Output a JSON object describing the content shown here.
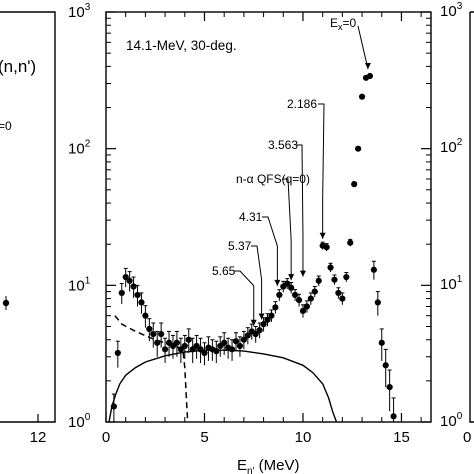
{
  "chart_data": {
    "type": "scatter",
    "title": "14.1-MeV, 30-deg.",
    "xlabel": "E",
    "xlabel_sub": "n'",
    "xlabel_unit": " (MeV)",
    "ylabel": "",
    "xlim": [
      0,
      16.5
    ],
    "ylim": [
      1,
      1000
    ],
    "yscale": "log",
    "x_ticks": [
      "0",
      "5",
      "10",
      "15"
    ],
    "y_ticks": [
      "10",
      "10",
      "10",
      "10"
    ],
    "y_tick_exps": [
      "0",
      "1",
      "2",
      "3"
    ],
    "series": [
      {
        "marker": "filled-circle",
        "x": [
          0.4,
          0.6,
          0.8,
          1.0,
          1.2,
          1.4,
          1.6,
          1.8,
          2.0,
          2.2,
          2.4,
          2.6,
          2.8,
          3.0,
          3.2,
          3.4,
          3.6,
          3.8,
          4.0,
          4.2,
          4.4,
          4.6,
          4.8,
          5.0,
          5.2,
          5.4,
          5.6,
          5.8,
          6.0,
          6.2,
          6.4,
          6.6,
          6.8,
          7.0,
          7.2,
          7.4,
          7.6,
          7.8,
          8.0,
          8.2,
          8.4,
          8.6,
          8.8,
          9.0,
          9.2,
          9.4,
          9.6,
          9.8,
          10.0,
          10.2,
          10.4,
          10.6,
          10.8,
          11.0,
          11.2,
          11.4,
          11.6,
          11.8,
          12.0,
          12.2,
          12.4,
          12.6,
          12.8,
          13.0,
          13.2,
          13.4,
          13.6,
          13.8,
          14.0,
          14.2,
          14.4,
          14.6
        ],
        "y": [
          1.3,
          3.2,
          8.8,
          11.5,
          10.8,
          9.8,
          8.5,
          7.5,
          6.0,
          4.8,
          4.4,
          3.8,
          4.4,
          3.4,
          3.8,
          3.6,
          3.8,
          3.4,
          3.6,
          4.0,
          3.4,
          3.6,
          3.4,
          3.2,
          3.5,
          3.4,
          3.3,
          3.6,
          3.8,
          3.5,
          3.4,
          3.9,
          3.6,
          4.0,
          4.3,
          4.6,
          4.4,
          4.7,
          5.2,
          5.6,
          6.0,
          6.9,
          8.5,
          9.8,
          10.3,
          9.6,
          8.5,
          7.8,
          6.5,
          7.0,
          8.0,
          9.0,
          10.8,
          19.5,
          19.0,
          13.5,
          11.0,
          8.8,
          8.0,
          11.5,
          20.5,
          55.0,
          100.0,
          240.0,
          330.0,
          340.0,
          13.0,
          7.5,
          3.8,
          2.6,
          1.8,
          1.1
        ],
        "yerr": [
          0.3,
          0.7,
          1.5,
          1.8,
          1.8,
          1.7,
          1.5,
          1.3,
          1.1,
          0.9,
          0.9,
          0.8,
          0.9,
          0.7,
          0.8,
          0.7,
          0.8,
          0.7,
          0.7,
          0.8,
          0.7,
          0.7,
          0.7,
          0.6,
          0.7,
          0.6,
          0.6,
          0.6,
          0.7,
          0.6,
          0.6,
          0.6,
          0.6,
          0.6,
          0.6,
          0.6,
          0.6,
          0.6,
          0.6,
          0.6,
          0.6,
          0.7,
          0.8,
          0.9,
          0.9,
          0.9,
          0.8,
          0.8,
          0.7,
          0.7,
          0.8,
          0.8,
          0.9,
          1.2,
          1.2,
          1.0,
          0.9,
          0.8,
          0.8,
          0.9,
          1.2,
          2.0,
          3.0,
          5.0,
          6.0,
          6.0,
          2.0,
          1.5,
          1.0,
          0.8,
          0.6,
          0.4
        ]
      },
      {
        "style": "dashed-line",
        "x": [
          0.45,
          0.8,
          1.5,
          2.5,
          3.5,
          3.9,
          4.0,
          4.05,
          4.1,
          4.15
        ],
        "y": [
          6.0,
          5.2,
          4.6,
          4.0,
          3.6,
          3.4,
          2.5,
          1.8,
          1.3,
          1.0
        ]
      },
      {
        "style": "solid-line",
        "x": [
          0.15,
          0.3,
          0.5,
          0.7,
          1.0,
          1.5,
          2.0,
          3.0,
          4.0,
          5.0,
          6.0,
          7.0,
          8.0,
          9.0,
          10.0,
          10.5,
          11.0,
          11.3,
          11.5,
          11.7
        ],
        "y": [
          1.0,
          1.3,
          1.6,
          1.9,
          2.2,
          2.5,
          2.75,
          3.05,
          3.25,
          3.35,
          3.35,
          3.3,
          3.15,
          2.95,
          2.6,
          2.3,
          1.9,
          1.5,
          1.2,
          1.0
        ]
      }
    ],
    "annotations": [
      {
        "text": "E",
        "sub": "x",
        "suffix": "=0",
        "x": 13.3,
        "y": 340.0
      },
      {
        "text": "2.186",
        "x": 11.0,
        "y": 19.5
      },
      {
        "text": "3.563",
        "x": 10.0,
        "y": 10.3
      },
      {
        "text": "n-α QFS(q=0)",
        "x": 9.4,
        "y": 9.7
      },
      {
        "text": "4.31",
        "x": 8.7,
        "y": 8.8
      },
      {
        "text": "5.37",
        "x": 7.9,
        "y": 5.0
      },
      {
        "text": "5.65",
        "x": 7.5,
        "y": 4.5
      }
    ]
  },
  "left_panel": {
    "label": "(n,n')",
    "partial_text": "=0",
    "x_tick": "12",
    "point": {
      "x": 11.0,
      "y": 7.0
    }
  },
  "right_panel": {
    "y_ticks": [
      "10",
      "10",
      "10"
    ],
    "y_tick_exps": [
      "3",
      "2",
      "1"
    ],
    "y_tick_last": "10",
    "y_tick_last_exp": "0",
    "x_tick": "0"
  }
}
